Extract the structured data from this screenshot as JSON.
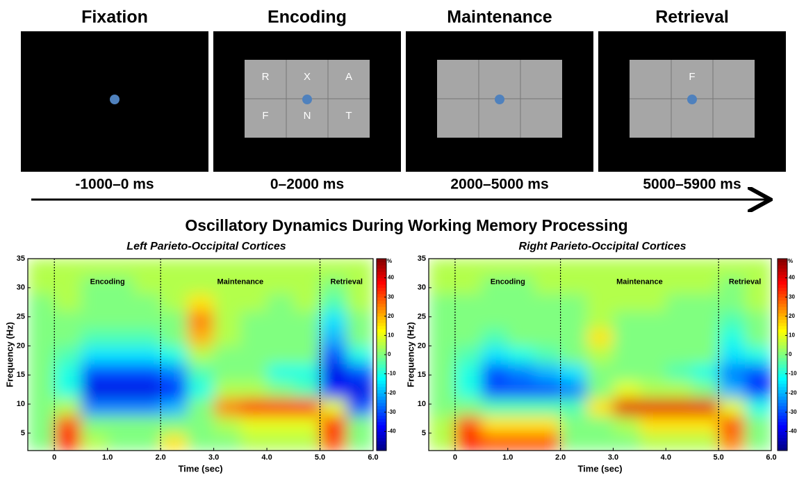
{
  "panels": [
    {
      "title": "Fixation",
      "time": "-1000–0 ms",
      "grid": false
    },
    {
      "title": "Encoding",
      "time": "0–2000 ms",
      "grid": true,
      "letters": [
        "R",
        "X",
        "A",
        "F",
        "N",
        "T"
      ]
    },
    {
      "title": "Maintenance",
      "time": "2000–5000 ms",
      "grid": true
    },
    {
      "title": "Retrieval",
      "time": "5000–5900 ms",
      "grid": true,
      "letters": [
        null,
        "F",
        null,
        null,
        null,
        null
      ]
    }
  ],
  "figure_title": "Oscillatory Dynamics During Working Memory Processing",
  "chart_data": [
    {
      "type": "heatmap",
      "title": "Left Parieto-Occipital Cortices",
      "xlabel": "Time (sec)",
      "ylabel": "Frequency (Hz)",
      "x": [
        -0.25,
        0.25,
        0.75,
        1.25,
        1.75,
        2.25,
        2.75,
        3.25,
        3.75,
        4.25,
        4.75,
        5.25,
        5.75
      ],
      "y": [
        3.5,
        6.5,
        9.5,
        12.5,
        15.5,
        18.5,
        21.5,
        24.5,
        27.5,
        30.5,
        33.5
      ],
      "values": [
        [
          0,
          35,
          5,
          0,
          0,
          15,
          0,
          0,
          5,
          5,
          5,
          30,
          0
        ],
        [
          0,
          30,
          0,
          0,
          0,
          0,
          0,
          5,
          10,
          10,
          10,
          35,
          0
        ],
        [
          0,
          5,
          -25,
          -25,
          -25,
          -20,
          0,
          25,
          35,
          35,
          35,
          10,
          -30
        ],
        [
          0,
          -10,
          -40,
          -40,
          -40,
          -35,
          -10,
          5,
          5,
          0,
          -5,
          -35,
          -40
        ],
        [
          0,
          -10,
          -30,
          -30,
          -30,
          -25,
          -5,
          0,
          0,
          -10,
          -10,
          -40,
          -30
        ],
        [
          0,
          -5,
          -15,
          -15,
          -15,
          -10,
          5,
          0,
          0,
          0,
          0,
          -30,
          -10
        ],
        [
          0,
          0,
          -5,
          -5,
          -5,
          0,
          20,
          5,
          0,
          0,
          0,
          -20,
          0
        ],
        [
          0,
          0,
          0,
          0,
          0,
          0,
          25,
          5,
          0,
          0,
          0,
          -15,
          0
        ],
        [
          0,
          5,
          0,
          0,
          0,
          5,
          15,
          5,
          5,
          0,
          5,
          -5,
          5
        ],
        [
          5,
          5,
          0,
          0,
          5,
          5,
          5,
          5,
          5,
          5,
          5,
          0,
          5
        ],
        [
          5,
          5,
          5,
          5,
          5,
          5,
          5,
          5,
          5,
          5,
          5,
          5,
          5
        ]
      ],
      "xlim": [
        -0.5,
        6
      ],
      "ylim": [
        2,
        35
      ],
      "xticks": [
        0,
        {
          "value": 1,
          "label": "1.0"
        },
        {
          "value": 2,
          "label": "2.0"
        },
        {
          "value": 3,
          "label": "3.0"
        },
        {
          "value": 4,
          "label": "4.0"
        },
        {
          "value": 5,
          "label": "5.0"
        },
        {
          "value": 6,
          "label": "6.0"
        }
      ],
      "yticks": [
        5,
        10,
        15,
        20,
        25,
        30,
        35
      ],
      "zlim": [
        -50,
        50
      ],
      "zticks": [
        40,
        30,
        20,
        10,
        0,
        -10,
        -20,
        -30,
        -40
      ],
      "zlabel": "%",
      "dividers": [
        0,
        2,
        5
      ],
      "annotations": [
        "Encoding",
        "Maintenance",
        "Retrieval"
      ]
    },
    {
      "type": "heatmap",
      "title": "Right Parieto-Occipital Cortices",
      "xlabel": "Time (sec)",
      "ylabel": "Frequency (Hz)",
      "x": [
        -0.25,
        0.25,
        0.75,
        1.25,
        1.75,
        2.25,
        2.75,
        3.25,
        3.75,
        4.25,
        4.75,
        5.25,
        5.75
      ],
      "y": [
        3.5,
        6.5,
        9.5,
        12.5,
        15.5,
        18.5,
        21.5,
        24.5,
        27.5,
        30.5,
        33.5
      ],
      "values": [
        [
          5,
          35,
          30,
          30,
          30,
          0,
          0,
          0,
          5,
          5,
          5,
          25,
          0
        ],
        [
          5,
          30,
          15,
          15,
          15,
          0,
          0,
          5,
          15,
          15,
          15,
          30,
          0
        ],
        [
          0,
          0,
          -5,
          -5,
          -5,
          -5,
          15,
          40,
          40,
          40,
          40,
          10,
          -10
        ],
        [
          0,
          -10,
          -30,
          -30,
          -30,
          -25,
          0,
          10,
          5,
          5,
          0,
          -20,
          -35
        ],
        [
          0,
          -10,
          -30,
          -25,
          -20,
          -15,
          0,
          0,
          0,
          -5,
          -10,
          -25,
          -30
        ],
        [
          0,
          -5,
          -15,
          -10,
          -5,
          0,
          5,
          0,
          0,
          0,
          0,
          -15,
          -10
        ],
        [
          0,
          0,
          -5,
          0,
          0,
          0,
          15,
          0,
          0,
          0,
          0,
          -10,
          0
        ],
        [
          0,
          0,
          0,
          0,
          0,
          0,
          5,
          0,
          0,
          0,
          0,
          -5,
          0
        ],
        [
          0,
          0,
          0,
          0,
          0,
          0,
          5,
          5,
          5,
          0,
          0,
          0,
          5
        ],
        [
          5,
          5,
          0,
          0,
          5,
          5,
          5,
          5,
          5,
          5,
          5,
          0,
          5
        ],
        [
          5,
          5,
          5,
          5,
          5,
          5,
          5,
          5,
          5,
          5,
          5,
          5,
          5
        ]
      ],
      "xlim": [
        -0.5,
        6
      ],
      "ylim": [
        2,
        35
      ],
      "xticks": [
        0,
        {
          "value": 1,
          "label": "1.0"
        },
        {
          "value": 2,
          "label": "2.0"
        },
        {
          "value": 3,
          "label": "3.0"
        },
        {
          "value": 4,
          "label": "4.0"
        },
        {
          "value": 5,
          "label": "5.0"
        },
        {
          "value": 6,
          "label": "6.0"
        }
      ],
      "yticks": [
        5,
        10,
        15,
        20,
        25,
        30,
        35
      ],
      "zlim": [
        -50,
        50
      ],
      "zticks": [
        40,
        30,
        20,
        10,
        0,
        -10,
        -20,
        -30,
        -40
      ],
      "zlabel": "%",
      "dividers": [
        0,
        2,
        5
      ],
      "annotations": [
        "Encoding",
        "Maintenance",
        "Retrieval"
      ]
    }
  ]
}
